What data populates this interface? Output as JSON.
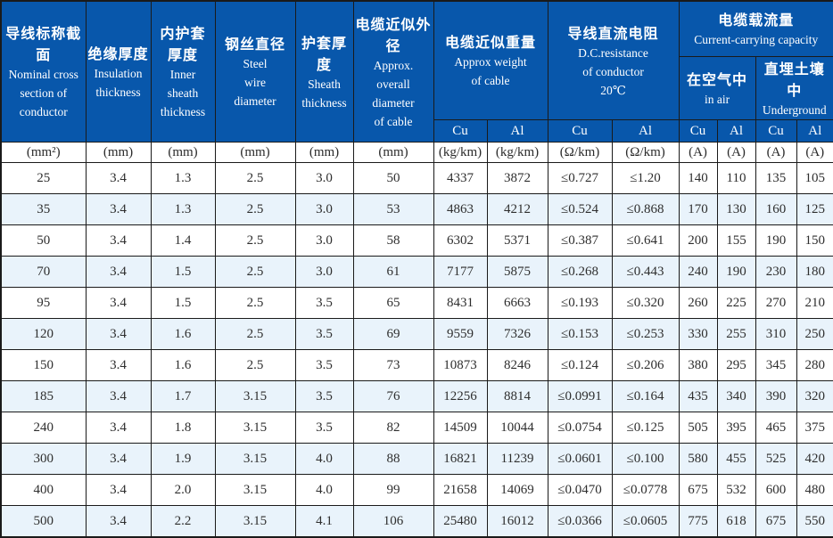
{
  "table": {
    "colors": {
      "header_bg": "#0857ab",
      "alt_row_bg": "#e9f3fb",
      "border": "#1a1a1a"
    },
    "header": {
      "cols": [
        {
          "zh": "导线标称截面",
          "en": "Nominal cross\nsection of\nconductor"
        },
        {
          "zh": "绝缘厚度",
          "en": "Insulation\nthickness"
        },
        {
          "zh": "内护套厚度",
          "en": "Inner\nsheath\nthickness"
        },
        {
          "zh": "钢丝直径",
          "en": "Steel\nwire\ndiameter"
        },
        {
          "zh": "护套厚度",
          "en": "Sheath\nthickness"
        },
        {
          "zh": "电缆近似外径",
          "en": "Approx.\noverall\ndiameter\nof cable"
        }
      ],
      "weight": {
        "zh": "电缆近似重量",
        "en": "Approx weight\nof cable"
      },
      "resistance": {
        "zh": "导线直流电阻",
        "en": "D.C.resistance\nof conductor\n20℃"
      },
      "capacity": {
        "zh": "电缆载流量",
        "en": "Current-carrying capacity"
      },
      "in_air": {
        "zh": "在空气中",
        "en": "in air"
      },
      "underground": {
        "zh": "直埋土壤中",
        "en": "Underground"
      },
      "metals": [
        "Cu",
        "Al",
        "Cu",
        "Al",
        "Cu",
        "Al",
        "Cu",
        "Al"
      ]
    },
    "units": [
      "(mm²)",
      "(mm)",
      "(mm)",
      "(mm)",
      "(mm)",
      "(mm)",
      "(kg/km)",
      "(kg/km)",
      "(Ω/km)",
      "(Ω/km)",
      "(A)",
      "(A)",
      "(A)",
      "(A)"
    ],
    "rows": [
      [
        "25",
        "3.4",
        "1.3",
        "2.5",
        "3.0",
        "50",
        "4337",
        "3872",
        "≤0.727",
        "≤1.20",
        "140",
        "110",
        "135",
        "105"
      ],
      [
        "35",
        "3.4",
        "1.3",
        "2.5",
        "3.0",
        "53",
        "4863",
        "4212",
        "≤0.524",
        "≤0.868",
        "170",
        "130",
        "160",
        "125"
      ],
      [
        "50",
        "3.4",
        "1.4",
        "2.5",
        "3.0",
        "58",
        "6302",
        "5371",
        "≤0.387",
        "≤0.641",
        "200",
        "155",
        "190",
        "150"
      ],
      [
        "70",
        "3.4",
        "1.5",
        "2.5",
        "3.0",
        "61",
        "7177",
        "5875",
        "≤0.268",
        "≤0.443",
        "240",
        "190",
        "230",
        "180"
      ],
      [
        "95",
        "3.4",
        "1.5",
        "2.5",
        "3.5",
        "65",
        "8431",
        "6663",
        "≤0.193",
        "≤0.320",
        "260",
        "225",
        "270",
        "210"
      ],
      [
        "120",
        "3.4",
        "1.6",
        "2.5",
        "3.5",
        "69",
        "9559",
        "7326",
        "≤0.153",
        "≤0.253",
        "330",
        "255",
        "310",
        "250"
      ],
      [
        "150",
        "3.4",
        "1.6",
        "2.5",
        "3.5",
        "73",
        "10873",
        "8246",
        "≤0.124",
        "≤0.206",
        "380",
        "295",
        "345",
        "280"
      ],
      [
        "185",
        "3.4",
        "1.7",
        "3.15",
        "3.5",
        "76",
        "12256",
        "8814",
        "≤0.0991",
        "≤0.164",
        "435",
        "340",
        "390",
        "320"
      ],
      [
        "240",
        "3.4",
        "1.8",
        "3.15",
        "3.5",
        "82",
        "14509",
        "10044",
        "≤0.0754",
        "≤0.125",
        "505",
        "395",
        "465",
        "375"
      ],
      [
        "300",
        "3.4",
        "1.9",
        "3.15",
        "4.0",
        "88",
        "16821",
        "11239",
        "≤0.0601",
        "≤0.100",
        "580",
        "455",
        "525",
        "420"
      ],
      [
        "400",
        "3.4",
        "2.0",
        "3.15",
        "4.0",
        "99",
        "21658",
        "14069",
        "≤0.0470",
        "≤0.0778",
        "675",
        "532",
        "600",
        "480"
      ],
      [
        "500",
        "3.4",
        "2.2",
        "3.15",
        "4.1",
        "106",
        "25480",
        "16012",
        "≤0.0366",
        "≤0.0605",
        "775",
        "618",
        "675",
        "550"
      ]
    ]
  }
}
